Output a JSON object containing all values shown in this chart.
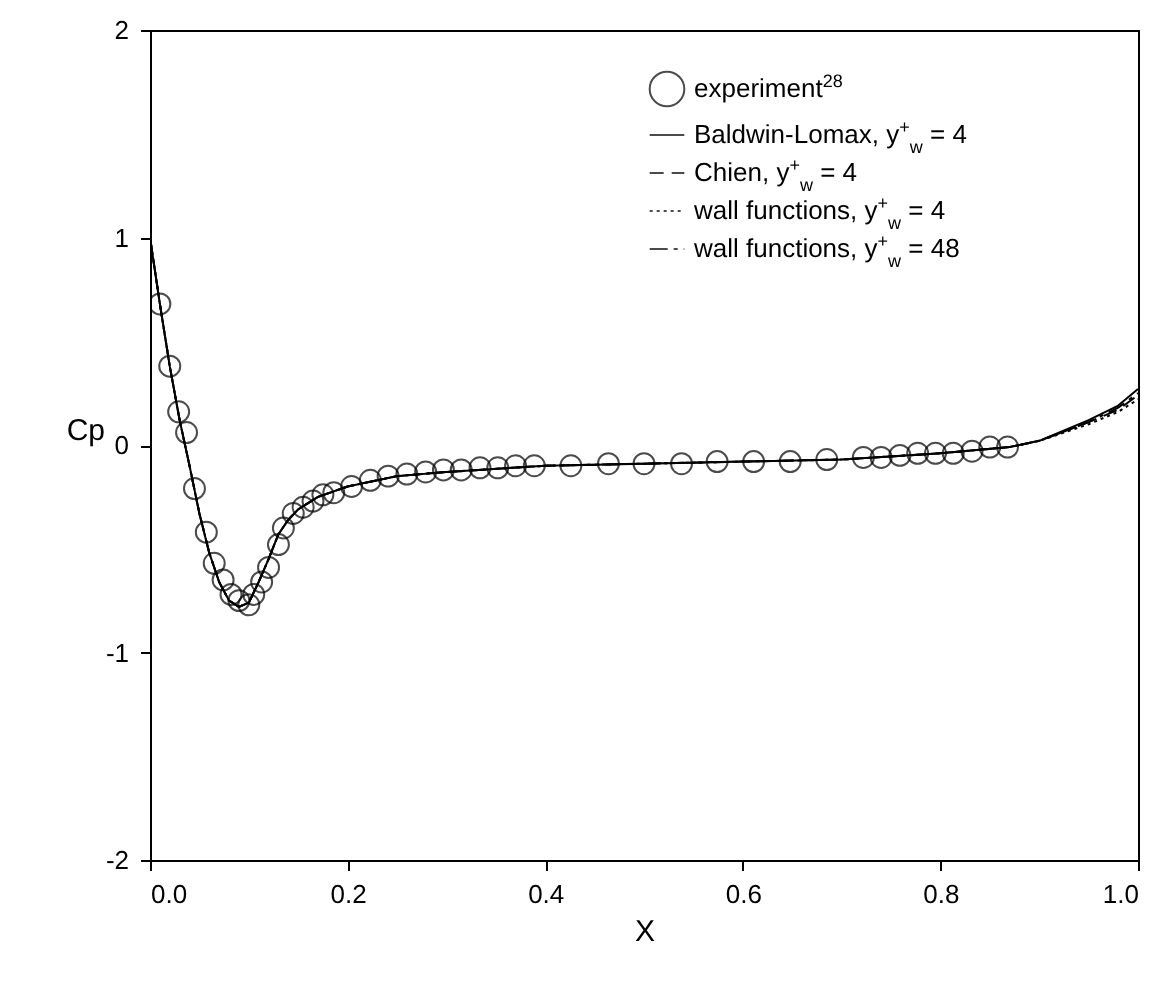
{
  "chart_data": {
    "type": "line",
    "xlabel": "X",
    "ylabel": "Cp",
    "xlim": [
      0,
      1
    ],
    "ylim": [
      -2,
      2
    ],
    "xticks": [
      {
        "value": 0,
        "label": "0.0"
      },
      {
        "value": 0.2,
        "label": "0.2"
      },
      {
        "value": 0.4,
        "label": "0.4"
      },
      {
        "value": 0.6,
        "label": "0.6"
      },
      {
        "value": 0.8,
        "label": "0.8"
      },
      {
        "value": 1,
        "label": "1.0"
      }
    ],
    "yticks": [
      -2,
      -1,
      0,
      1,
      2
    ],
    "grid": false,
    "legend": "top right",
    "series": [
      {
        "name": "experiment$^{28}$",
        "type": "scatter",
        "marker": "circle",
        "color": "#000000",
        "x": [
          0.01,
          0.02,
          0.029,
          0.037,
          0.045,
          0.057,
          0.065,
          0.074,
          0.082,
          0.09,
          0.1,
          0.105,
          0.113,
          0.12,
          0.13,
          0.135,
          0.145,
          0.155,
          0.165,
          0.175,
          0.186,
          0.204,
          0.223,
          0.241,
          0.26,
          0.279,
          0.297,
          0.315,
          0.334,
          0.352,
          0.37,
          0.389,
          0.426,
          0.464,
          0.5,
          0.538,
          0.574,
          0.611,
          0.648,
          0.685,
          0.722,
          0.74,
          0.759,
          0.777,
          0.795,
          0.813,
          0.832,
          0.85,
          0.868
        ],
        "values": [
          0.68,
          0.38,
          0.16,
          0.06,
          -0.21,
          -0.42,
          -0.57,
          -0.65,
          -0.72,
          -0.75,
          -0.77,
          -0.72,
          -0.66,
          -0.59,
          -0.48,
          -0.4,
          -0.33,
          -0.3,
          -0.27,
          -0.24,
          -0.23,
          -0.2,
          -0.17,
          -0.15,
          -0.14,
          -0.13,
          -0.12,
          -0.12,
          -0.11,
          -0.11,
          -0.1,
          -0.1,
          -0.1,
          -0.09,
          -0.09,
          -0.09,
          -0.08,
          -0.08,
          -0.08,
          -0.07,
          -0.06,
          -0.06,
          -0.05,
          -0.04,
          -0.04,
          -0.04,
          -0.03,
          -0.01,
          -0.01
        ]
      },
      {
        "name": "Baldwin-Lomax, y$^{+}$$_{w}$ = 4",
        "type": "line",
        "line_style": "solid",
        "color": "#000000",
        "x": [
          0,
          0.01,
          0.02,
          0.03,
          0.04,
          0.05,
          0.06,
          0.07,
          0.08,
          0.09,
          0.1,
          0.11,
          0.12,
          0.13,
          0.14,
          0.15,
          0.17,
          0.2,
          0.25,
          0.3,
          0.4,
          0.5,
          0.6,
          0.7,
          0.8,
          0.87,
          0.9,
          0.95,
          0.98,
          1.0
        ],
        "values": [
          1.0,
          0.68,
          0.38,
          0.12,
          -0.1,
          -0.33,
          -0.52,
          -0.66,
          -0.75,
          -0.78,
          -0.76,
          -0.66,
          -0.55,
          -0.43,
          -0.36,
          -0.31,
          -0.25,
          -0.2,
          -0.15,
          -0.13,
          -0.1,
          -0.09,
          -0.08,
          -0.07,
          -0.04,
          -0.01,
          0.02,
          0.12,
          0.19,
          0.27
        ]
      },
      {
        "name": "Chien, y$^{+}$$_{w}$ = 4",
        "type": "line",
        "line_style": "dashed",
        "color": "#000000",
        "x": [
          0,
          0.01,
          0.02,
          0.03,
          0.04,
          0.05,
          0.06,
          0.07,
          0.08,
          0.09,
          0.1,
          0.11,
          0.12,
          0.13,
          0.14,
          0.15,
          0.17,
          0.2,
          0.25,
          0.3,
          0.4,
          0.5,
          0.6,
          0.7,
          0.8,
          0.87,
          0.9,
          0.95,
          0.98,
          1.0
        ],
        "values": [
          1.0,
          0.68,
          0.38,
          0.12,
          -0.1,
          -0.33,
          -0.52,
          -0.66,
          -0.75,
          -0.78,
          -0.76,
          -0.66,
          -0.55,
          -0.43,
          -0.36,
          -0.31,
          -0.25,
          -0.2,
          -0.15,
          -0.13,
          -0.1,
          -0.09,
          -0.08,
          -0.07,
          -0.04,
          -0.01,
          0.02,
          0.11,
          0.17,
          0.24
        ]
      },
      {
        "name": "wall functions, y$^{+}$$_{w}$ = 4",
        "type": "line",
        "line_style": "dotted",
        "color": "#000000",
        "x": [
          0,
          0.01,
          0.02,
          0.03,
          0.04,
          0.05,
          0.06,
          0.07,
          0.08,
          0.09,
          0.1,
          0.11,
          0.12,
          0.13,
          0.14,
          0.15,
          0.17,
          0.2,
          0.25,
          0.3,
          0.4,
          0.5,
          0.6,
          0.7,
          0.8,
          0.87,
          0.9,
          0.95,
          0.98,
          1.0
        ],
        "values": [
          1.0,
          0.68,
          0.38,
          0.12,
          -0.1,
          -0.33,
          -0.52,
          -0.66,
          -0.75,
          -0.78,
          -0.76,
          -0.66,
          -0.55,
          -0.43,
          -0.36,
          -0.31,
          -0.25,
          -0.2,
          -0.15,
          -0.13,
          -0.1,
          -0.09,
          -0.08,
          -0.07,
          -0.04,
          -0.01,
          0.02,
          0.1,
          0.16,
          0.22
        ]
      },
      {
        "name": "wall functions, y$^{+}$$_{w}$ = 48",
        "type": "line",
        "line_style": "dashdot",
        "color": "#000000",
        "x": [
          0,
          0.01,
          0.02,
          0.03,
          0.04,
          0.05,
          0.06,
          0.07,
          0.08,
          0.09,
          0.1,
          0.11,
          0.12,
          0.13,
          0.14,
          0.15,
          0.17,
          0.2,
          0.25,
          0.3,
          0.4,
          0.5,
          0.6,
          0.7,
          0.8,
          0.87,
          0.9,
          0.95,
          0.98,
          1.0
        ],
        "values": [
          1.0,
          0.68,
          0.38,
          0.12,
          -0.1,
          -0.33,
          -0.52,
          -0.66,
          -0.75,
          -0.78,
          -0.76,
          -0.66,
          -0.55,
          -0.43,
          -0.36,
          -0.31,
          -0.25,
          -0.2,
          -0.15,
          -0.13,
          -0.1,
          -0.09,
          -0.08,
          -0.07,
          -0.04,
          -0.01,
          0.02,
          0.11,
          0.18,
          0.25
        ]
      }
    ]
  }
}
